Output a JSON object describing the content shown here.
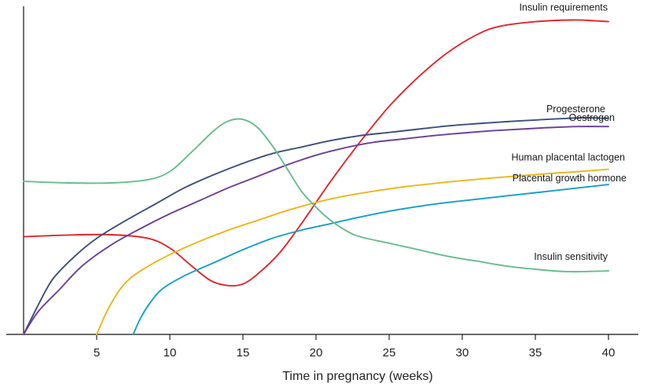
{
  "chart_data": {
    "type": "line",
    "title": "",
    "xlabel": "Time in pregnancy (weeks)",
    "ylabel": "",
    "xlim": [
      0,
      42.5
    ],
    "ylim": [
      0,
      100
    ],
    "xticks": [
      5,
      10,
      15,
      20,
      25,
      30,
      35,
      40
    ],
    "grid": false,
    "legend": "none; series labelled directly on curves",
    "series": [
      {
        "name": "Insulin requirements",
        "color": "#e1262b",
        "points": [
          [
            0,
            30
          ],
          [
            3,
            30.5
          ],
          [
            6,
            30.6
          ],
          [
            8.5,
            29.5
          ],
          [
            10,
            26.5
          ],
          [
            11.5,
            21
          ],
          [
            12.8,
            16.5
          ],
          [
            14,
            15
          ],
          [
            15,
            15.5
          ],
          [
            16,
            18.5
          ],
          [
            17.5,
            25
          ],
          [
            19,
            34
          ],
          [
            21,
            47
          ],
          [
            23,
            59
          ],
          [
            25,
            70
          ],
          [
            27,
            79
          ],
          [
            29,
            86.5
          ],
          [
            31,
            92
          ],
          [
            32.5,
            94.5
          ],
          [
            35,
            96
          ],
          [
            37.5,
            96.5
          ],
          [
            39,
            96.3
          ],
          [
            40,
            96
          ]
        ]
      },
      {
        "name": "Progesterone",
        "color": "#3b4f7c",
        "points": [
          [
            0,
            0
          ],
          [
            1,
            9
          ],
          [
            2,
            17
          ],
          [
            3.5,
            24
          ],
          [
            5,
            29.5
          ],
          [
            7,
            35
          ],
          [
            9,
            40
          ],
          [
            11,
            45
          ],
          [
            13,
            49
          ],
          [
            15,
            52.5
          ],
          [
            17,
            55.5
          ],
          [
            19,
            57.5
          ],
          [
            21,
            59.5
          ],
          [
            23,
            61
          ],
          [
            25,
            62
          ],
          [
            27,
            63
          ],
          [
            29,
            64
          ],
          [
            31,
            64.7
          ],
          [
            33,
            65.3
          ],
          [
            35,
            65.8
          ],
          [
            37,
            66.3
          ],
          [
            38.5,
            66.5
          ],
          [
            40,
            66.3
          ]
        ]
      },
      {
        "name": "Oestrogen",
        "color": "#6c3f98",
        "points": [
          [
            0,
            0
          ],
          [
            1,
            7
          ],
          [
            2.5,
            14
          ],
          [
            4,
            21
          ],
          [
            6,
            27.5
          ],
          [
            8,
            32.5
          ],
          [
            10,
            37
          ],
          [
            12,
            41
          ],
          [
            14,
            45
          ],
          [
            16,
            48.5
          ],
          [
            18,
            52
          ],
          [
            20,
            55
          ],
          [
            22,
            57.3
          ],
          [
            24,
            59
          ],
          [
            26,
            60
          ],
          [
            28,
            61
          ],
          [
            30,
            61.8
          ],
          [
            32,
            62.5
          ],
          [
            34,
            63
          ],
          [
            36,
            63.5
          ],
          [
            38,
            63.8
          ],
          [
            40,
            63.8
          ]
        ]
      },
      {
        "name": "Human placental lactogen",
        "color": "#eab71b",
        "points": [
          [
            5,
            0
          ],
          [
            5.8,
            8
          ],
          [
            6.8,
            15
          ],
          [
            8,
            19.5
          ],
          [
            10,
            24.5
          ],
          [
            12,
            28.5
          ],
          [
            14,
            32
          ],
          [
            16,
            35
          ],
          [
            18,
            38
          ],
          [
            20,
            40.5
          ],
          [
            22,
            42.5
          ],
          [
            24,
            44
          ],
          [
            26,
            45.3
          ],
          [
            28,
            46.3
          ],
          [
            30,
            47.2
          ],
          [
            32,
            48
          ],
          [
            34,
            48.7
          ],
          [
            36,
            49.4
          ],
          [
            38,
            50
          ],
          [
            40,
            50.7
          ]
        ]
      },
      {
        "name": "Placental growth hormone",
        "color": "#149fc7",
        "points": [
          [
            7.5,
            0
          ],
          [
            8,
            5
          ],
          [
            8.7,
            10
          ],
          [
            9.5,
            14
          ],
          [
            11,
            18
          ],
          [
            13,
            22
          ],
          [
            15,
            26
          ],
          [
            17,
            29.5
          ],
          [
            19,
            32
          ],
          [
            21,
            34
          ],
          [
            23,
            36
          ],
          [
            25,
            37.8
          ],
          [
            27,
            39.3
          ],
          [
            29,
            40.5
          ],
          [
            31,
            41.5
          ],
          [
            33,
            42.5
          ],
          [
            35,
            43.5
          ],
          [
            37,
            44.5
          ],
          [
            39,
            45.5
          ],
          [
            40,
            46
          ]
        ]
      },
      {
        "name": "Insulin sensitivity",
        "color": "#66bd8c",
        "points": [
          [
            0,
            47
          ],
          [
            3,
            46.5
          ],
          [
            6,
            46.5
          ],
          [
            8.5,
            47.5
          ],
          [
            10,
            50
          ],
          [
            11.5,
            56
          ],
          [
            13,
            62.5
          ],
          [
            14,
            65.5
          ],
          [
            15,
            66
          ],
          [
            16,
            63.5
          ],
          [
            17,
            58
          ],
          [
            18,
            51
          ],
          [
            19,
            44
          ],
          [
            20,
            39
          ],
          [
            21,
            35
          ],
          [
            22,
            32
          ],
          [
            23,
            30
          ],
          [
            25,
            28
          ],
          [
            27,
            26
          ],
          [
            29,
            24
          ],
          [
            31,
            22.5
          ],
          [
            33,
            21
          ],
          [
            35,
            20
          ],
          [
            37,
            19.3
          ],
          [
            38.5,
            19.3
          ],
          [
            40,
            19.5
          ]
        ]
      }
    ]
  }
}
